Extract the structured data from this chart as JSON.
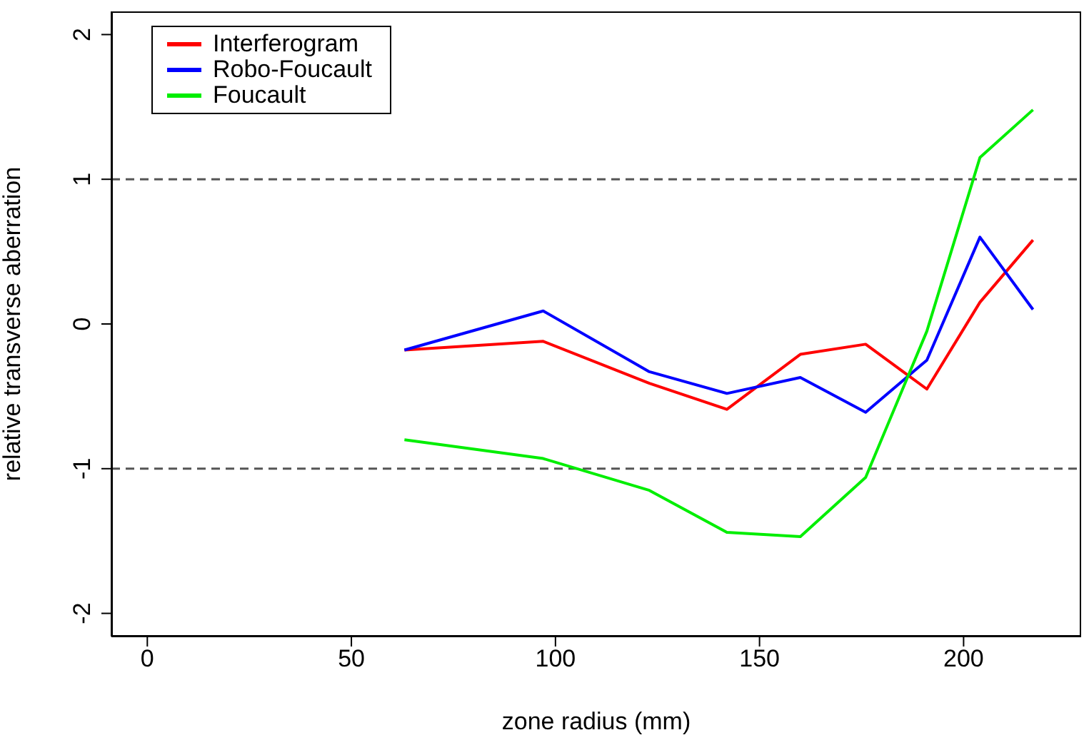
{
  "chart_data": {
    "type": "line",
    "xlabel": "zone radius (mm)",
    "ylabel": "relative transverse aberration",
    "x": [
      63,
      97,
      123,
      142,
      160,
      176,
      191,
      204,
      217
    ],
    "series": [
      {
        "name": "Interferogram",
        "color": "#ff0000",
        "values": [
          -0.18,
          -0.12,
          -0.41,
          -0.59,
          -0.21,
          -0.14,
          -0.45,
          0.15,
          0.58
        ]
      },
      {
        "name": "Robo-Foucault",
        "color": "#0000ff",
        "values": [
          -0.18,
          0.09,
          -0.33,
          -0.48,
          -0.37,
          -0.61,
          -0.25,
          0.6,
          0.1
        ]
      },
      {
        "name": "Foucault",
        "color": "#00ee00",
        "values": [
          -0.8,
          -0.93,
          -1.15,
          -1.44,
          -1.47,
          -1.06,
          -0.05,
          1.15,
          1.48
        ]
      }
    ],
    "xlim": [
      -8.8,
      228.8
    ],
    "xticks": [
      0,
      50,
      100,
      150,
      200
    ],
    "ylim": [
      -2.16,
      2.16
    ],
    "yticks": [
      -2,
      -1,
      0,
      1,
      2
    ],
    "ref_lines": [
      {
        "axis": "y",
        "value": 1,
        "line_style": "dashed",
        "color": "#555555"
      },
      {
        "axis": "y",
        "value": -1,
        "line_style": "dashed",
        "color": "#555555"
      }
    ],
    "grid": false,
    "legend": "top left",
    "marker": "none",
    "line_style": "solid"
  }
}
